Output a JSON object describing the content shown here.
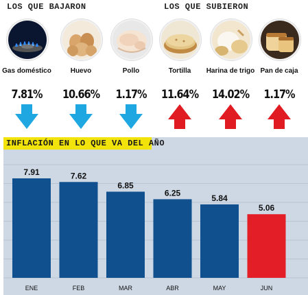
{
  "header": {
    "down_title": "LOS QUE BAJARON",
    "up_title": "LOS QUE SUBIERON"
  },
  "items": [
    {
      "label": "Gas doméstico",
      "pct": "7.81%",
      "direction": "down",
      "icon": "gas-burner-icon"
    },
    {
      "label": "Huevo",
      "pct": "10.66%",
      "direction": "down",
      "icon": "eggs-icon"
    },
    {
      "label": "Pollo",
      "pct": "1.17%",
      "direction": "down",
      "icon": "chicken-icon"
    },
    {
      "label": "Tortilla",
      "pct": "11.64%",
      "direction": "up",
      "icon": "tortilla-icon"
    },
    {
      "label": "Harina de trigo",
      "pct": "14.02%",
      "direction": "up",
      "icon": "flour-icon"
    },
    {
      "label": "Pan de caja",
      "pct": "1.17%",
      "direction": "up",
      "icon": "bread-icon"
    }
  ],
  "colors": {
    "down_arrow": "#1ea7e1",
    "up_arrow": "#e11b22",
    "bar_default": "#10508f",
    "bar_highlight": "#e41e26",
    "panel_bg": "#cdd8e4",
    "title_band": "#f2e30a"
  },
  "chart_data": {
    "type": "bar",
    "title": "INFLACIÓN EN LO QUE VA DEL AÑO",
    "categories": [
      "ENE",
      "FEB",
      "MAR",
      "ABR",
      "MAY",
      "JUN"
    ],
    "values": [
      7.91,
      7.62,
      6.85,
      6.25,
      5.84,
      5.06
    ],
    "value_labels": [
      "7.91",
      "7.62",
      "6.85",
      "6.25",
      "5.84",
      "5.06"
    ],
    "highlight_index": 5,
    "ylim": [
      0,
      9
    ],
    "grid": true
  }
}
